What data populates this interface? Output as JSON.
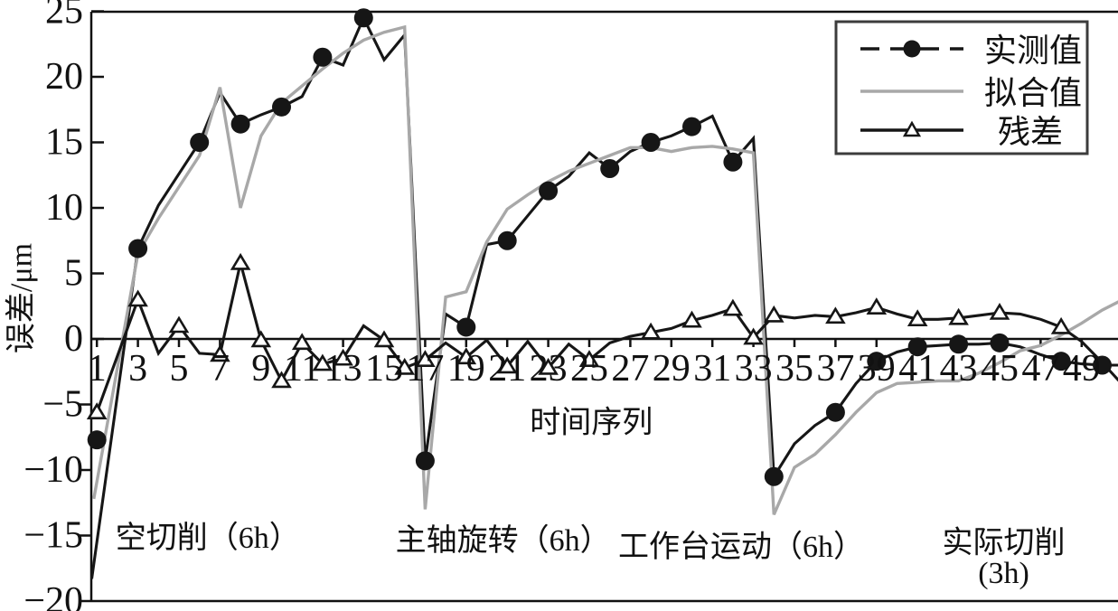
{
  "chart_data": {
    "type": "line",
    "title": "",
    "xlabel": "时间序列",
    "ylabel": "误差/μm",
    "xlim": [
      0,
      51
    ],
    "ylim": [
      -20,
      25
    ],
    "grid": false,
    "legend_position": "top-right",
    "x_ticks": [
      1,
      3,
      5,
      7,
      9,
      11,
      13,
      15,
      17,
      19,
      21,
      23,
      25,
      27,
      29,
      31,
      33,
      35,
      37,
      39,
      41,
      43,
      45,
      47,
      49
    ],
    "y_ticks": [
      25,
      20,
      15,
      10,
      5,
      0,
      -5,
      -10,
      -15,
      -20
    ],
    "colors": {
      "measured": "#161616",
      "fitted": "#a8a8a8",
      "residual": "#161616",
      "legend_border": "#3c3c3c",
      "axis": "#111111"
    },
    "legend": {
      "entries": [
        {
          "key": "measured",
          "label": "实测值",
          "line": "dashed",
          "color": "#161616",
          "marker": "filled-circle"
        },
        {
          "key": "fitted",
          "label": "拟合值",
          "line": "solid",
          "color": "#a8a8a8",
          "marker": "none"
        },
        {
          "key": "residual",
          "label": "残差",
          "line": "solid",
          "color": "#161616",
          "marker": "open-triangle"
        }
      ]
    },
    "phase_annotations": [
      {
        "text": "空切削（6h）",
        "x": 6.4,
        "y": -15.2
      },
      {
        "text": "主轴旋转（6h）",
        "x": 20.8,
        "y": -15.4
      },
      {
        "text": "工作台运动（6h）",
        "x": 32.4,
        "y": -15.9
      },
      {
        "text": "实际切削",
        "x": 45.2,
        "y": -15.6
      },
      {
        "text": "(3h)",
        "x": 45.2,
        "y": -17.9
      }
    ],
    "xlabel_pos": {
      "x": 25.1,
      "y": -6.4
    },
    "series": [
      {
        "key": "measured",
        "name": "实测值",
        "color": "#161616",
        "marker": "filled-circle",
        "points": [
          [
            0.75,
            -18.3
          ],
          [
            3,
            6.9
          ],
          [
            4,
            10.2
          ],
          [
            5,
            12.6
          ],
          [
            6,
            15.0
          ],
          [
            7,
            18.8
          ],
          [
            8,
            16.4
          ],
          [
            9,
            17.1
          ],
          [
            10,
            17.7
          ],
          [
            11,
            18.5
          ],
          [
            12,
            21.5
          ],
          [
            13,
            20.9
          ],
          [
            14,
            24.5
          ],
          [
            15,
            21.3
          ],
          [
            16,
            23.2
          ],
          [
            17,
            -9.3
          ],
          [
            18,
            1.9
          ],
          [
            19,
            0.9
          ],
          [
            20,
            7.2
          ],
          [
            21,
            7.5
          ],
          [
            22,
            9.4
          ],
          [
            23,
            11.3
          ],
          [
            24,
            12.4
          ],
          [
            25,
            14.2
          ],
          [
            26,
            13.0
          ],
          [
            27,
            14.3
          ],
          [
            28,
            15.0
          ],
          [
            29,
            15.5
          ],
          [
            30,
            16.2
          ],
          [
            31,
            17.0
          ],
          [
            32,
            13.5
          ],
          [
            33,
            15.3
          ],
          [
            34,
            -10.5
          ],
          [
            35,
            -8.0
          ],
          [
            36,
            -6.6
          ],
          [
            37,
            -5.6
          ],
          [
            38,
            -3.4
          ],
          [
            39,
            -1.7
          ],
          [
            40,
            -1.0
          ],
          [
            41,
            -0.6
          ],
          [
            42,
            -0.5
          ],
          [
            43,
            -0.4
          ],
          [
            44,
            -0.4
          ],
          [
            45,
            -0.3
          ],
          [
            46,
            -0.6
          ],
          [
            47,
            -1.2
          ],
          [
            48,
            -1.7
          ],
          [
            49,
            -1.9
          ],
          [
            50,
            -2.0
          ],
          [
            51,
            -2.0
          ]
        ],
        "marker_points": [
          [
            1,
            -7.7
          ],
          [
            3,
            6.9
          ],
          [
            6,
            15.0
          ],
          [
            8,
            16.4
          ],
          [
            10,
            17.7
          ],
          [
            12,
            21.5
          ],
          [
            14,
            24.5
          ],
          [
            17,
            -9.3
          ],
          [
            19,
            0.9
          ],
          [
            21,
            7.5
          ],
          [
            23,
            11.3
          ],
          [
            26,
            13.0
          ],
          [
            28,
            15.0
          ],
          [
            30,
            16.2
          ],
          [
            32,
            13.5
          ],
          [
            34,
            -10.5
          ],
          [
            37,
            -5.6
          ],
          [
            39,
            -1.7
          ],
          [
            41,
            -0.6
          ],
          [
            43,
            -0.4
          ],
          [
            45,
            -0.3
          ],
          [
            48,
            -1.7
          ],
          [
            50,
            -2.0
          ]
        ]
      },
      {
        "key": "fitted",
        "name": "拟合值",
        "color": "#a8a8a8",
        "marker": "none",
        "points": [
          [
            0.85,
            -12.2
          ],
          [
            3,
            6.5
          ],
          [
            4,
            9.2
          ],
          [
            5,
            11.6
          ],
          [
            6,
            14.0
          ],
          [
            7,
            19.2
          ],
          [
            8,
            10.0
          ],
          [
            9,
            15.5
          ],
          [
            10,
            18.0
          ],
          [
            11,
            19.3
          ],
          [
            12,
            20.6
          ],
          [
            13,
            21.8
          ],
          [
            14,
            22.8
          ],
          [
            15,
            23.4
          ],
          [
            16,
            23.8
          ],
          [
            17,
            -13.0
          ],
          [
            18,
            3.2
          ],
          [
            19,
            3.6
          ],
          [
            20,
            7.4
          ],
          [
            21,
            9.9
          ],
          [
            22,
            11.0
          ],
          [
            23,
            12.0
          ],
          [
            24,
            12.8
          ],
          [
            25,
            13.4
          ],
          [
            26,
            14.0
          ],
          [
            27,
            14.6
          ],
          [
            28,
            14.6
          ],
          [
            29,
            14.3
          ],
          [
            30,
            14.6
          ],
          [
            31,
            14.7
          ],
          [
            32,
            14.5
          ],
          [
            33,
            14.2
          ],
          [
            34,
            -13.4
          ],
          [
            35,
            -9.8
          ],
          [
            36,
            -8.8
          ],
          [
            37,
            -7.3
          ],
          [
            38,
            -5.6
          ],
          [
            39,
            -4.1
          ],
          [
            40,
            -3.4
          ],
          [
            41,
            -3.3
          ],
          [
            42,
            -3.2
          ],
          [
            43,
            -3.2
          ],
          [
            44,
            -2.6
          ],
          [
            45,
            -1.8
          ],
          [
            46,
            -0.9
          ],
          [
            47,
            -0.5
          ],
          [
            48,
            0.3
          ],
          [
            49,
            1.2
          ],
          [
            50,
            2.2
          ],
          [
            51,
            3.0
          ]
        ],
        "marker_points": []
      },
      {
        "key": "residual",
        "name": "残差",
        "color": "#161616",
        "marker": "open-triangle",
        "points": [
          [
            1,
            -5.6
          ],
          [
            3,
            3.0
          ],
          [
            4,
            -1.1
          ],
          [
            5,
            1.0
          ],
          [
            6,
            -1.1
          ],
          [
            7,
            -1.2
          ],
          [
            8,
            5.8
          ],
          [
            9,
            -0.1
          ],
          [
            10,
            -3.2
          ],
          [
            11,
            -0.3
          ],
          [
            12,
            -1.9
          ],
          [
            13,
            -1.5
          ],
          [
            14,
            1.0
          ],
          [
            15,
            -0.1
          ],
          [
            16,
            -2.2
          ],
          [
            17,
            -1.6
          ],
          [
            18,
            -0.3
          ],
          [
            19,
            -1.4
          ],
          [
            20,
            -0.1
          ],
          [
            21,
            -2.1
          ],
          [
            22,
            -0.2
          ],
          [
            23,
            -2.2
          ],
          [
            24,
            -0.4
          ],
          [
            25,
            -1.6
          ],
          [
            26,
            -0.3
          ],
          [
            27,
            0.2
          ],
          [
            28,
            0.5
          ],
          [
            29,
            0.8
          ],
          [
            30,
            1.4
          ],
          [
            31,
            1.8
          ],
          [
            32,
            2.3
          ],
          [
            33,
            0.1
          ],
          [
            34,
            1.8
          ],
          [
            35,
            1.6
          ],
          [
            36,
            1.8
          ],
          [
            37,
            1.7
          ],
          [
            38,
            2.0
          ],
          [
            39,
            2.4
          ],
          [
            40,
            1.9
          ],
          [
            41,
            1.5
          ],
          [
            42,
            1.5
          ],
          [
            43,
            1.6
          ],
          [
            44,
            1.8
          ],
          [
            45,
            2.0
          ],
          [
            46,
            1.9
          ],
          [
            47,
            1.5
          ],
          [
            48,
            0.9
          ],
          [
            49,
            -0.2
          ],
          [
            50,
            -1.8
          ],
          [
            51,
            -3.5
          ]
        ],
        "marker_points": [
          [
            1,
            -5.6
          ],
          [
            3,
            3.0
          ],
          [
            5,
            1.0
          ],
          [
            7,
            -1.2
          ],
          [
            8,
            5.8
          ],
          [
            9,
            -0.1
          ],
          [
            10,
            -3.2
          ],
          [
            11,
            -0.3
          ],
          [
            12,
            -1.9
          ],
          [
            13,
            -1.5
          ],
          [
            15,
            -0.1
          ],
          [
            16,
            -2.2
          ],
          [
            17,
            -1.6
          ],
          [
            19,
            -1.4
          ],
          [
            21,
            -2.1
          ],
          [
            23,
            -2.2
          ],
          [
            25,
            -1.6
          ],
          [
            28,
            0.5
          ],
          [
            30,
            1.4
          ],
          [
            32,
            2.3
          ],
          [
            33,
            0.1
          ],
          [
            34,
            1.8
          ],
          [
            37,
            1.7
          ],
          [
            39,
            2.4
          ],
          [
            41,
            1.5
          ],
          [
            43,
            1.6
          ],
          [
            45,
            2.0
          ],
          [
            48,
            0.9
          ]
        ]
      }
    ]
  }
}
